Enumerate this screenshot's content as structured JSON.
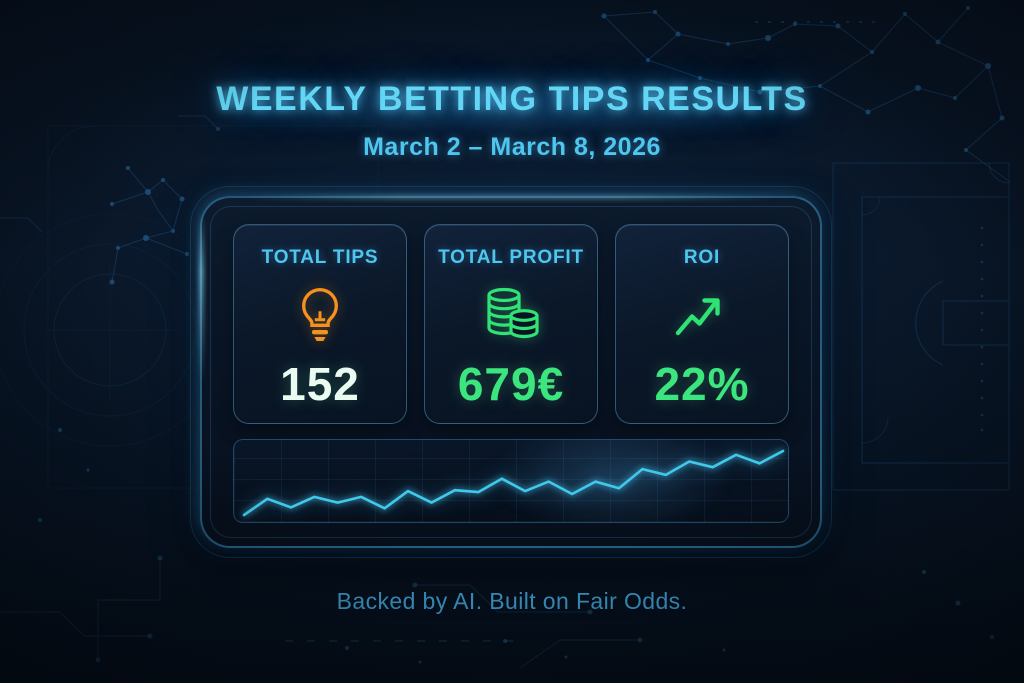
{
  "header": {
    "title": "WEEKLY BETTING TIPS RESULTS",
    "date_range": "March 2 – March 8, 2026"
  },
  "stats_panel": {
    "cards": [
      {
        "label": "TOTAL TIPS",
        "value": "152",
        "icon": "lightbulb-icon",
        "icon_color": "#f5911e",
        "value_color": "#eafbf2"
      },
      {
        "label": "TOTAL PROFIT",
        "value": "679€",
        "icon": "coins-icon",
        "icon_color": "#2fe375",
        "value_color": "#3ce67e"
      },
      {
        "label": "ROI",
        "value": "22%",
        "icon": "trend-up-icon",
        "icon_color": "#2fe375",
        "value_color": "#3ce67e"
      }
    ]
  },
  "footer": {
    "tagline": "Backed by AI. Built on Fair Odds."
  },
  "colors": {
    "background": "#081424",
    "title": "#62d6f4",
    "subtitle": "#4fc6ee",
    "card_label": "#4fc6ee",
    "accent_green": "#2fe375",
    "accent_orange": "#f5911e",
    "value_white": "#eafbf2",
    "chart_line": "#3fc9ea",
    "footer_text": "#3f9fd1",
    "panel_border": "#3e96c8"
  },
  "chart_data": {
    "type": "line",
    "title": "",
    "xlabel": "",
    "ylabel": "",
    "tick_labels": "none shown (decorative sparkline)",
    "grid": true,
    "legend": false,
    "line_color": "#3fc9ea",
    "values": [
      5,
      22,
      13,
      24,
      18,
      24,
      12,
      30,
      18,
      31,
      29,
      43,
      30,
      40,
      27,
      40,
      33,
      53,
      47,
      61,
      55,
      68,
      59,
      72
    ],
    "trend": "upward zigzag, cumulative profit over the week"
  }
}
